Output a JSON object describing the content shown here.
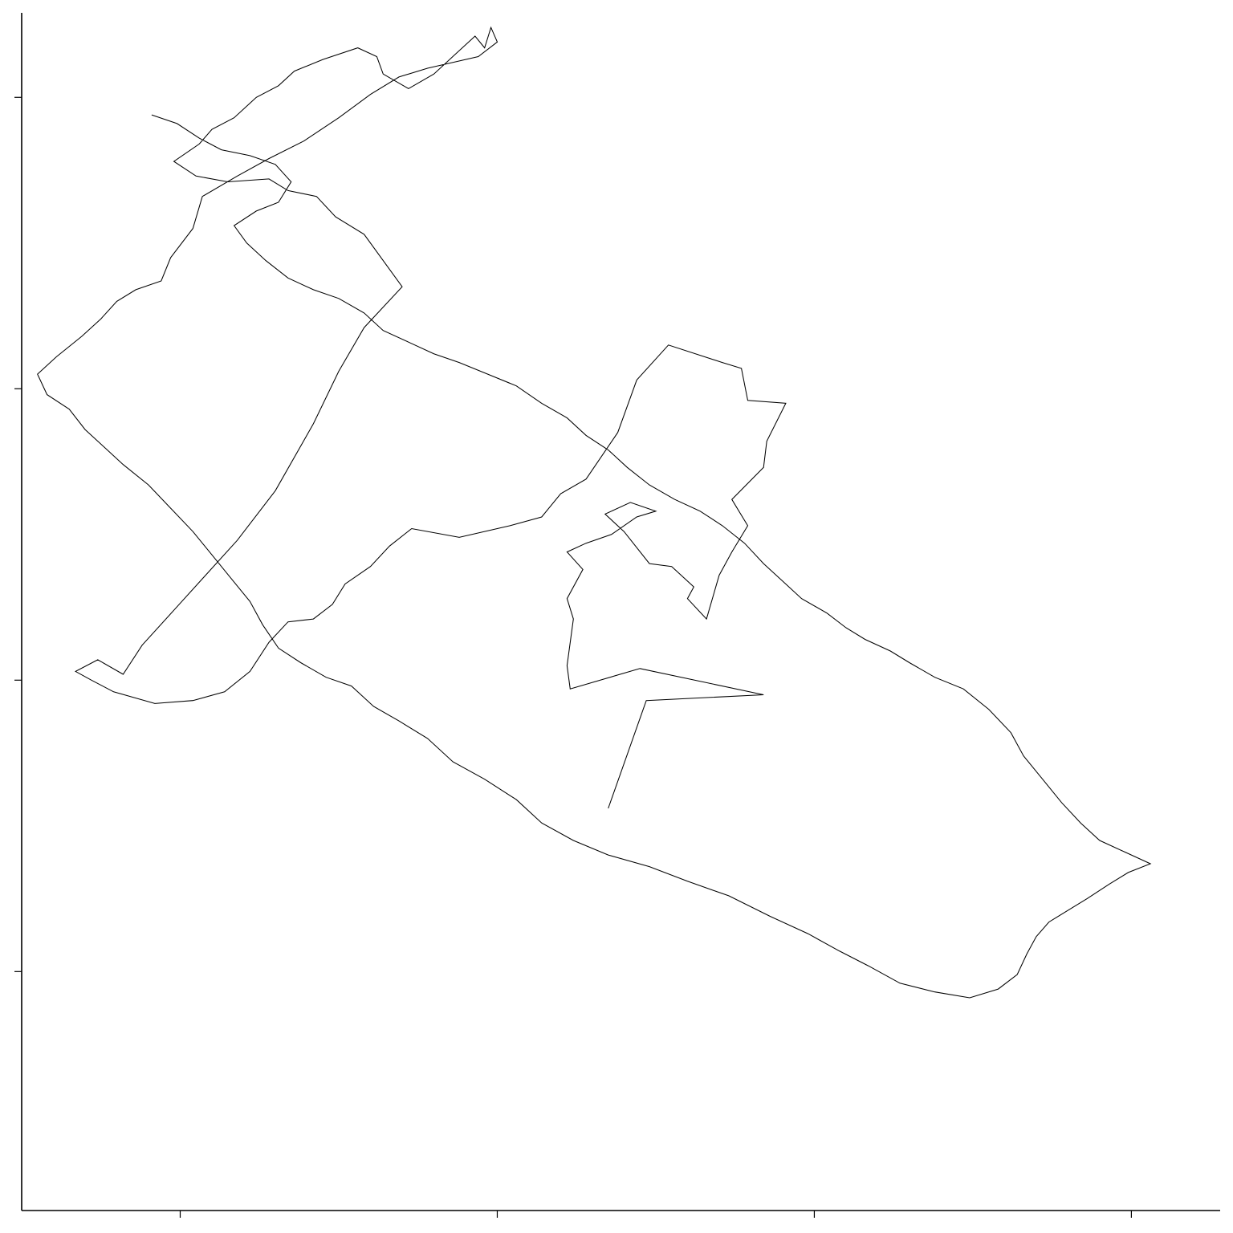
{
  "chart_data": {
    "type": "line",
    "title": "",
    "xlabel": "",
    "ylabel": "",
    "xlim": [
      -0.5,
      3.28
    ],
    "ylim": [
      -0.82,
      3.29
    ],
    "xticks": [
      0,
      1,
      2,
      3
    ],
    "yticks": [
      0,
      1,
      2,
      3
    ],
    "tick_labels_shown": false,
    "grid": false,
    "legend": "none",
    "line_color": "#000000",
    "series": [
      {
        "points": [
          [
            1.35,
            0.56
          ],
          [
            1.47,
            0.93
          ],
          [
            1.84,
            0.95
          ],
          [
            1.45,
            1.04
          ],
          [
            1.23,
            0.97
          ],
          [
            1.22,
            1.05
          ],
          [
            1.24,
            1.21
          ],
          [
            1.22,
            1.28
          ],
          [
            1.27,
            1.38
          ],
          [
            1.22,
            1.44
          ],
          [
            1.28,
            1.47
          ],
          [
            1.36,
            1.5
          ],
          [
            1.44,
            1.56
          ],
          [
            1.5,
            1.58
          ],
          [
            1.42,
            1.61
          ],
          [
            1.34,
            1.57
          ],
          [
            1.4,
            1.51
          ],
          [
            1.48,
            1.4
          ],
          [
            1.55,
            1.39
          ],
          [
            1.62,
            1.32
          ],
          [
            1.6,
            1.28
          ],
          [
            1.66,
            1.21
          ],
          [
            1.7,
            1.36
          ],
          [
            1.74,
            1.44
          ],
          [
            1.79,
            1.53
          ],
          [
            1.74,
            1.62
          ],
          [
            1.84,
            1.73
          ],
          [
            1.85,
            1.82
          ],
          [
            1.91,
            1.95
          ],
          [
            1.79,
            1.96
          ],
          [
            1.77,
            2.07
          ],
          [
            1.71,
            2.09
          ],
          [
            1.54,
            2.15
          ],
          [
            1.44,
            2.03
          ],
          [
            1.38,
            1.85
          ],
          [
            1.28,
            1.69
          ],
          [
            1.2,
            1.64
          ],
          [
            1.14,
            1.56
          ],
          [
            1.04,
            1.53
          ],
          [
            0.88,
            1.49
          ],
          [
            0.73,
            1.52
          ],
          [
            0.66,
            1.46
          ],
          [
            0.6,
            1.39
          ],
          [
            0.52,
            1.33
          ],
          [
            0.48,
            1.26
          ],
          [
            0.42,
            1.21
          ],
          [
            0.34,
            1.2
          ],
          [
            0.28,
            1.13
          ],
          [
            0.22,
            1.03
          ],
          [
            0.14,
            0.96
          ],
          [
            0.04,
            0.93
          ],
          [
            -0.08,
            0.92
          ],
          [
            -0.21,
            0.96
          ],
          [
            -0.28,
            1.0
          ],
          [
            -0.33,
            1.03
          ],
          [
            -0.26,
            1.07
          ],
          [
            -0.18,
            1.02
          ],
          [
            -0.12,
            1.12
          ],
          [
            -0.02,
            1.24
          ],
          [
            0.08,
            1.36
          ],
          [
            0.18,
            1.48
          ],
          [
            0.3,
            1.65
          ],
          [
            0.42,
            1.88
          ],
          [
            0.5,
            2.06
          ],
          [
            0.58,
            2.21
          ],
          [
            0.7,
            2.35
          ],
          [
            0.58,
            2.53
          ],
          [
            0.49,
            2.59
          ],
          [
            0.43,
            2.66
          ],
          [
            0.34,
            2.68
          ],
          [
            0.28,
            2.72
          ],
          [
            0.15,
            2.71
          ],
          [
            0.05,
            2.73
          ],
          [
            -0.02,
            2.78
          ],
          [
            0.06,
            2.84
          ],
          [
            0.1,
            2.89
          ],
          [
            0.17,
            2.93
          ],
          [
            0.24,
            3.0
          ],
          [
            0.31,
            3.04
          ],
          [
            0.36,
            3.09
          ],
          [
            0.45,
            3.13
          ],
          [
            0.56,
            3.17
          ],
          [
            0.62,
            3.14
          ],
          [
            0.64,
            3.08
          ],
          [
            0.72,
            3.03
          ],
          [
            0.8,
            3.08
          ],
          [
            0.87,
            3.15
          ],
          [
            0.93,
            3.21
          ],
          [
            0.96,
            3.17
          ],
          [
            0.98,
            3.24
          ],
          [
            1.0,
            3.19
          ],
          [
            0.94,
            3.14
          ],
          [
            0.86,
            3.12
          ],
          [
            0.78,
            3.1
          ],
          [
            0.69,
            3.07
          ],
          [
            0.6,
            3.01
          ],
          [
            0.5,
            2.93
          ],
          [
            0.39,
            2.85
          ],
          [
            0.28,
            2.79
          ],
          [
            0.18,
            2.73
          ],
          [
            0.07,
            2.66
          ],
          [
            0.04,
            2.55
          ],
          [
            -0.03,
            2.45
          ],
          [
            -0.06,
            2.37
          ],
          [
            -0.14,
            2.34
          ],
          [
            -0.2,
            2.3
          ],
          [
            -0.25,
            2.24
          ],
          [
            -0.31,
            2.18
          ],
          [
            -0.39,
            2.11
          ],
          [
            -0.45,
            2.05
          ],
          [
            -0.42,
            1.98
          ],
          [
            -0.35,
            1.93
          ],
          [
            -0.3,
            1.86
          ],
          [
            -0.24,
            1.8
          ],
          [
            -0.18,
            1.74
          ],
          [
            -0.1,
            1.67
          ],
          [
            -0.03,
            1.59
          ],
          [
            0.04,
            1.51
          ],
          [
            0.1,
            1.43
          ],
          [
            0.16,
            1.35
          ],
          [
            0.22,
            1.27
          ],
          [
            0.26,
            1.19
          ],
          [
            0.31,
            1.11
          ],
          [
            0.38,
            1.06
          ],
          [
            0.46,
            1.01
          ],
          [
            0.54,
            0.98
          ],
          [
            0.61,
            0.91
          ],
          [
            0.69,
            0.86
          ],
          [
            0.78,
            0.8
          ],
          [
            0.86,
            0.72
          ],
          [
            0.96,
            0.66
          ],
          [
            1.06,
            0.59
          ],
          [
            1.14,
            0.51
          ],
          [
            1.24,
            0.45
          ],
          [
            1.35,
            0.4
          ],
          [
            1.48,
            0.36
          ],
          [
            1.6,
            0.31
          ],
          [
            1.73,
            0.26
          ],
          [
            1.86,
            0.19
          ],
          [
            1.98,
            0.13
          ],
          [
            2.08,
            0.07
          ],
          [
            2.17,
            0.02
          ],
          [
            2.27,
            -0.04
          ],
          [
            2.38,
            -0.07
          ],
          [
            2.49,
            -0.09
          ],
          [
            2.58,
            -0.06
          ],
          [
            2.64,
            -0.01
          ],
          [
            2.67,
            0.06
          ],
          [
            2.7,
            0.12
          ],
          [
            2.74,
            0.17
          ],
          [
            2.8,
            0.21
          ],
          [
            2.86,
            0.25
          ],
          [
            2.93,
            0.3
          ],
          [
            2.99,
            0.34
          ],
          [
            3.06,
            0.37
          ],
          [
            2.98,
            0.41
          ],
          [
            2.9,
            0.45
          ],
          [
            2.84,
            0.51
          ],
          [
            2.78,
            0.58
          ],
          [
            2.72,
            0.66
          ],
          [
            2.66,
            0.74
          ],
          [
            2.62,
            0.82
          ],
          [
            2.55,
            0.9
          ],
          [
            2.47,
            0.97
          ],
          [
            2.38,
            1.01
          ],
          [
            2.3,
            1.06
          ],
          [
            2.24,
            1.1
          ],
          [
            2.16,
            1.14
          ],
          [
            2.1,
            1.18
          ],
          [
            2.04,
            1.23
          ],
          [
            1.96,
            1.28
          ],
          [
            1.9,
            1.34
          ],
          [
            1.84,
            1.4
          ],
          [
            1.78,
            1.47
          ],
          [
            1.71,
            1.53
          ],
          [
            1.64,
            1.58
          ],
          [
            1.56,
            1.62
          ],
          [
            1.48,
            1.67
          ],
          [
            1.41,
            1.73
          ],
          [
            1.35,
            1.79
          ],
          [
            1.28,
            1.84
          ],
          [
            1.22,
            1.9
          ],
          [
            1.14,
            1.95
          ],
          [
            1.06,
            2.01
          ],
          [
            0.97,
            2.05
          ],
          [
            0.88,
            2.09
          ],
          [
            0.8,
            2.12
          ],
          [
            0.72,
            2.16
          ],
          [
            0.64,
            2.2
          ],
          [
            0.58,
            2.26
          ],
          [
            0.5,
            2.31
          ],
          [
            0.42,
            2.34
          ],
          [
            0.34,
            2.38
          ],
          [
            0.27,
            2.44
          ],
          [
            0.21,
            2.5
          ],
          [
            0.17,
            2.56
          ],
          [
            0.24,
            2.61
          ],
          [
            0.31,
            2.64
          ],
          [
            0.35,
            2.71
          ],
          [
            0.3,
            2.77
          ],
          [
            0.22,
            2.8
          ],
          [
            0.13,
            2.82
          ],
          [
            0.06,
            2.86
          ],
          [
            -0.01,
            2.91
          ],
          [
            -0.09,
            2.94
          ]
        ]
      }
    ]
  }
}
